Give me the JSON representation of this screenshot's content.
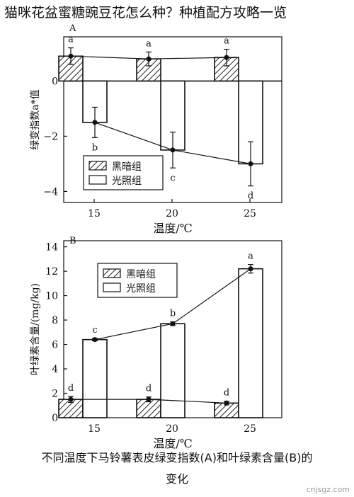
{
  "article": {
    "title": "猫咪花盆蜜糖豌豆花怎么种？种植配方攻略一览",
    "caption_line1": "不同温度下马铃薯表皮绿变指数(A)和叶绿素含量(B)的",
    "caption_line2": "变化"
  },
  "chart_data": [
    {
      "type": "bar",
      "panel": "A",
      "xlabel": "温度/℃",
      "ylabel": "绿变指数a*值",
      "categories": [
        "15",
        "20",
        "25"
      ],
      "ylim": [
        -4.4,
        1.6
      ],
      "yticks": [
        "0",
        "-2",
        "-4"
      ],
      "legend_position": "bottom-left",
      "series": [
        {
          "name": "黑暗组",
          "values": [
            0.9,
            0.8,
            0.85
          ],
          "errors": [
            0.3,
            0.25,
            0.3
          ],
          "labels": [
            "a",
            "a",
            "a"
          ],
          "pattern": "hatch"
        },
        {
          "name": "光照组",
          "values": [
            -1.5,
            -2.5,
            -3.0
          ],
          "errors": [
            0.55,
            0.65,
            0.8
          ],
          "labels": [
            "b",
            "c",
            "d"
          ],
          "pattern": "white"
        }
      ]
    },
    {
      "type": "bar",
      "panel": "B",
      "xlabel": "温度/℃",
      "ylabel": "叶绿素含量/(mg/kg)",
      "categories": [
        "15",
        "20",
        "25"
      ],
      "ylim": [
        0,
        14.5
      ],
      "yticks": [
        "0",
        "2",
        "4",
        "6",
        "8",
        "10",
        "12",
        "14"
      ],
      "legend_position": "top-left",
      "series": [
        {
          "name": "黑暗组",
          "values": [
            1.5,
            1.5,
            1.2
          ],
          "errors": [
            0.25,
            0.2,
            0.15
          ],
          "labels": [
            "d",
            "d",
            "d"
          ],
          "pattern": "hatch"
        },
        {
          "name": "光照组",
          "values": [
            6.4,
            7.7,
            12.2
          ],
          "errors": [
            0.1,
            0.15,
            0.35
          ],
          "labels": [
            "c",
            "b",
            "a"
          ],
          "pattern": "white"
        }
      ]
    }
  ],
  "watermark": "cnjsgz.com"
}
